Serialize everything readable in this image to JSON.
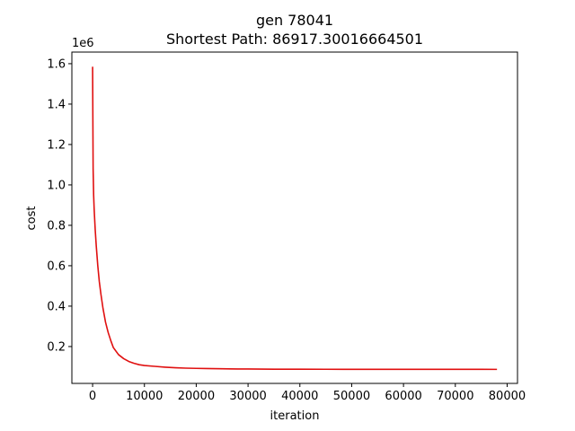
{
  "chart_data": {
    "type": "line",
    "title": "gen 78041",
    "subtitle": "Shortest Path: 86917.30016664501",
    "xlabel": "iteration",
    "ylabel": "cost",
    "y_offset_label": "1e6",
    "xlim": [
      -4000,
      82000
    ],
    "ylim": [
      0.0175,
      1.6575
    ],
    "y_scale_factor": 1000000,
    "grid": false,
    "legend": "none",
    "x_ticks": [
      0,
      10000,
      20000,
      30000,
      40000,
      50000,
      60000,
      70000,
      80000
    ],
    "x_tick_labels": [
      "0",
      "10000",
      "20000",
      "30000",
      "40000",
      "50000",
      "60000",
      "70000",
      "80000"
    ],
    "y_ticks": [
      0.2,
      0.4,
      0.6,
      0.8,
      1.0,
      1.2,
      1.4,
      1.6
    ],
    "y_tick_labels": [
      "0.2",
      "0.4",
      "0.6",
      "0.8",
      "1.0",
      "1.2",
      "1.4",
      "1.6"
    ],
    "series": [
      {
        "color": "#e01010",
        "x": [
          0,
          100,
          200,
          300,
          500,
          700,
          1000,
          1300,
          1600,
          2000,
          2500,
          3000,
          3500,
          4000,
          5000,
          6000,
          7000,
          8000,
          9000,
          10000,
          12000,
          14000,
          16000,
          18000,
          20000,
          22000,
          25000,
          28000,
          30000,
          35000,
          40000,
          45000,
          50000,
          55000,
          60000,
          65000,
          70000,
          75000,
          78041
        ],
        "y": [
          1.585,
          1.08,
          0.95,
          0.88,
          0.78,
          0.7,
          0.6,
          0.52,
          0.46,
          0.39,
          0.32,
          0.27,
          0.23,
          0.195,
          0.16,
          0.14,
          0.126,
          0.117,
          0.11,
          0.106,
          0.102,
          0.098,
          0.095,
          0.093,
          0.092,
          0.091,
          0.09,
          0.089,
          0.089,
          0.088,
          0.088,
          0.0875,
          0.0872,
          0.0871,
          0.087,
          0.087,
          0.087,
          0.087,
          0.0869
        ]
      }
    ]
  }
}
